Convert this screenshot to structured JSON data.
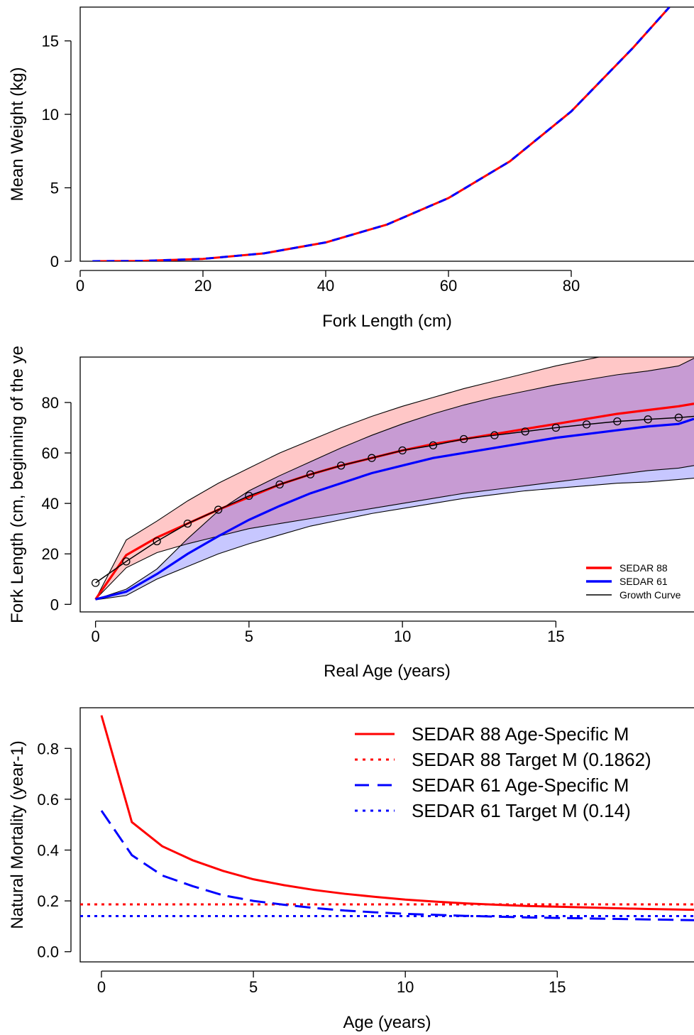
{
  "chart_data": [
    {
      "type": "line",
      "title": "",
      "xlabel": "Fork Length (cm)",
      "ylabel": "Mean Weight (kg)",
      "xlim": [
        0,
        100
      ],
      "ylim": [
        0,
        17.3
      ],
      "xticks": [
        0,
        20,
        40,
        60,
        80
      ],
      "yticks": [
        0,
        5,
        10,
        15
      ],
      "x": [
        2,
        10,
        20,
        30,
        40,
        50,
        60,
        70,
        80,
        90,
        96
      ],
      "series": [
        {
          "color": "#ff0000",
          "style": "solid",
          "values": [
            0.0003,
            0.02,
            0.16,
            0.54,
            1.28,
            2.5,
            4.3,
            6.8,
            10.2,
            14.5,
            17.3
          ]
        },
        {
          "color": "#0000ff",
          "style": "dashed",
          "values": [
            0.0003,
            0.02,
            0.16,
            0.54,
            1.28,
            2.5,
            4.3,
            6.8,
            10.2,
            14.5,
            17.3
          ]
        }
      ]
    },
    {
      "type": "line",
      "title": "",
      "xlabel": "Real Age (years)",
      "ylabel": "Fork Length (cm, beginning of the ye",
      "xlim": [
        -0.5,
        19.5
      ],
      "ylim": [
        -3,
        98
      ],
      "xticks": [
        0,
        5,
        10,
        15
      ],
      "yticks": [
        0,
        20,
        40,
        60,
        80
      ],
      "legend": {
        "position": "bottom-right",
        "entries": [
          {
            "label": "SEDAR 88",
            "color": "#ff0000"
          },
          {
            "label": "SEDAR 61",
            "color": "#0000ff"
          },
          {
            "label": "Growth Curve",
            "color": "#000000"
          }
        ]
      },
      "x": [
        0,
        1,
        2,
        3,
        4,
        5,
        6,
        7,
        8,
        9,
        10,
        11,
        12,
        13,
        14,
        15,
        16,
        17,
        18,
        19,
        19.5
      ],
      "series": [
        {
          "name": "SEDAR 88",
          "color": "#ff0000",
          "values": [
            2,
            19.5,
            26.5,
            32,
            37.5,
            42.5,
            47.5,
            51.5,
            55,
            58,
            61,
            63.5,
            65.5,
            67.5,
            69.5,
            71.5,
            73.5,
            75.5,
            77,
            78.5,
            79.5
          ]
        },
        {
          "name": "SEDAR 61",
          "color": "#0000ff",
          "values": [
            2,
            5,
            12,
            20,
            27,
            33.5,
            39,
            44,
            48,
            52,
            55,
            58,
            60,
            62,
            64,
            66,
            67.5,
            69,
            70.5,
            71.5,
            73.5
          ]
        },
        {
          "name": "Growth Curve",
          "color": "#000000",
          "markers": true,
          "x": [
            0,
            1,
            2,
            3,
            4,
            5,
            6,
            7,
            8,
            9,
            10,
            11,
            12,
            13,
            14,
            15,
            16,
            17,
            18,
            19,
            19.5
          ],
          "values": [
            8.5,
            17,
            25,
            32,
            37.5,
            43,
            47.5,
            51.5,
            55,
            58,
            61,
            63,
            65.5,
            67,
            68.5,
            70,
            71.3,
            72.5,
            73.3,
            74,
            74.5
          ]
        }
      ],
      "bands": [
        {
          "color": "#ff0000",
          "upper": [
            2,
            25.5,
            33,
            41,
            48,
            54,
            60,
            65,
            70,
            74.5,
            78.5,
            82,
            85.5,
            88.5,
            91.5,
            94.5,
            97,
            99.5,
            102,
            104,
            105
          ],
          "lower": [
            2,
            14.5,
            20.5,
            24,
            27,
            30,
            32,
            34,
            36,
            38,
            40,
            42,
            44,
            45.5,
            47,
            48.5,
            50,
            51.5,
            53,
            54,
            55
          ]
        },
        {
          "color": "#0000ff",
          "upper": [
            2,
            6,
            14,
            26,
            37,
            45,
            51,
            56.5,
            62,
            67,
            71.5,
            75.5,
            79,
            82,
            84.5,
            87,
            89,
            91,
            92.5,
            94.5,
            97.5
          ],
          "lower": [
            1.8,
            3.5,
            10,
            15,
            20,
            24,
            27.5,
            31,
            33.5,
            36,
            38,
            40,
            42,
            43.5,
            45,
            46,
            47,
            48,
            48.5,
            49.5,
            50
          ]
        }
      ]
    },
    {
      "type": "line",
      "title": "",
      "xlabel": "Age (years)",
      "ylabel": "Natural Mortality (year-1)",
      "xlim": [
        -0.7,
        19.5
      ],
      "ylim": [
        -0.04,
        0.96
      ],
      "xticks": [
        0,
        5,
        10,
        15
      ],
      "yticks": [
        0.0,
        0.2,
        0.4,
        0.6,
        0.8
      ],
      "ytick_labels": [
        "0.0",
        "0.2",
        "0.4",
        "0.6",
        "0.8"
      ],
      "legend": {
        "position": "top-right",
        "entries": [
          {
            "label": "SEDAR 88 Age-Specific M",
            "color": "#ff0000",
            "style": "solid"
          },
          {
            "label": "SEDAR 88 Target M (0.1862)",
            "color": "#ff0000",
            "style": "dotted"
          },
          {
            "label": "SEDAR 61 Age-Specific M",
            "color": "#0000ff",
            "style": "dashed"
          },
          {
            "label": "SEDAR 61 Target M (0.14)",
            "color": "#0000ff",
            "style": "dotted"
          }
        ]
      },
      "x": [
        0,
        1,
        2,
        3,
        4,
        5,
        6,
        7,
        8,
        9,
        10,
        11,
        12,
        13,
        14,
        15,
        16,
        17,
        18,
        19,
        19.5
      ],
      "series": [
        {
          "name": "SEDAR 88 Age-Specific M",
          "color": "#ff0000",
          "style": "solid",
          "values": [
            0.93,
            0.51,
            0.415,
            0.36,
            0.318,
            0.285,
            0.262,
            0.243,
            0.228,
            0.216,
            0.205,
            0.197,
            0.19,
            0.185,
            0.18,
            0.177,
            0.174,
            0.171,
            0.168,
            0.166,
            0.165
          ]
        },
        {
          "name": "SEDAR 88 Target M (0.1862)",
          "color": "#ff0000",
          "style": "dotted",
          "values": [
            0.1862,
            0.1862,
            0.1862,
            0.1862,
            0.1862,
            0.1862,
            0.1862,
            0.1862,
            0.1862,
            0.1862,
            0.1862,
            0.1862,
            0.1862,
            0.1862,
            0.1862,
            0.1862,
            0.1862,
            0.1862,
            0.1862,
            0.1862,
            0.1862
          ]
        },
        {
          "name": "SEDAR 61 Age-Specific M",
          "color": "#0000ff",
          "style": "dashed",
          "values": [
            0.555,
            0.38,
            0.3,
            0.258,
            0.222,
            0.2,
            0.185,
            0.172,
            0.162,
            0.155,
            0.149,
            0.145,
            0.141,
            0.138,
            0.135,
            0.133,
            0.131,
            0.129,
            0.127,
            0.125,
            0.124
          ]
        },
        {
          "name": "SEDAR 61 Target M (0.14)",
          "color": "#0000ff",
          "style": "dotted",
          "values": [
            0.14,
            0.14,
            0.14,
            0.14,
            0.14,
            0.14,
            0.14,
            0.14,
            0.14,
            0.14,
            0.14,
            0.14,
            0.14,
            0.14,
            0.14,
            0.14,
            0.14,
            0.14,
            0.14,
            0.14,
            0.14
          ]
        }
      ]
    }
  ]
}
